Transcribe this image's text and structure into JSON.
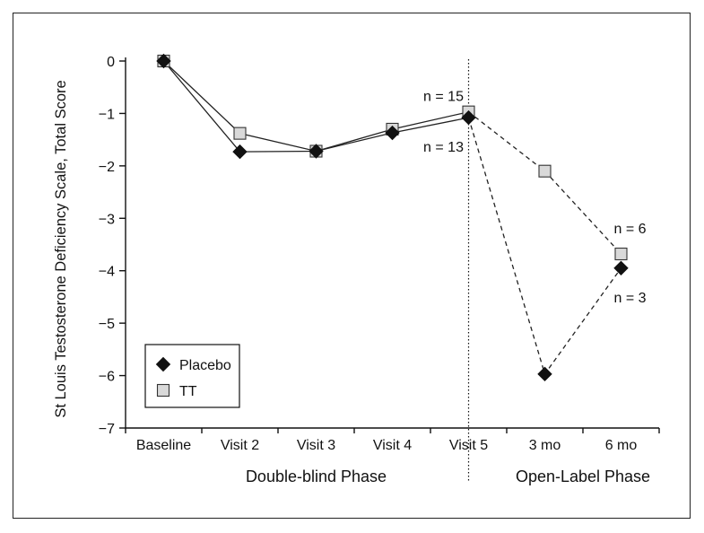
{
  "chart_data": {
    "type": "line",
    "ylabel": "St Louis Testosterone Deficiency Scale, Total Score",
    "xlabel": "",
    "ylim": [
      -7,
      0
    ],
    "yticks": [
      0,
      -1,
      -2,
      -3,
      -4,
      -5,
      -6,
      -7
    ],
    "ytick_labels": [
      "0",
      "−1",
      "−2",
      "−3",
      "−4",
      "−5",
      "−6",
      "−7"
    ],
    "categories": [
      "Baseline",
      "Visit 2",
      "Visit 3",
      "Visit 4",
      "Visit 5",
      "3 mo",
      "6 mo"
    ],
    "phases": [
      {
        "label": "Double-blind Phase",
        "categories": [
          "Baseline",
          "Visit 2",
          "Visit 3",
          "Visit 4",
          "Visit 5"
        ]
      },
      {
        "label": "Open-Label Phase",
        "categories": [
          "3 mo",
          "6 mo"
        ]
      }
    ],
    "phase_divider_after": "Visit 5",
    "series": [
      {
        "name": "Placebo",
        "marker": "diamond",
        "color": "#111111",
        "values": [
          0,
          -1.73,
          -1.72,
          -1.37,
          -1.08,
          -5.97,
          -3.95
        ]
      },
      {
        "name": "TT",
        "marker": "square",
        "color": "#d9d9d9",
        "values": [
          0,
          -1.38,
          -1.72,
          -1.3,
          -0.97,
          -2.1,
          -3.68
        ]
      }
    ],
    "annotations": [
      {
        "text": "n = 15",
        "series": "TT",
        "category": "Visit 5"
      },
      {
        "text": "n = 13",
        "series": "Placebo",
        "category": "Visit 5"
      },
      {
        "text": "n = 6",
        "series": "TT",
        "category": "6 mo"
      },
      {
        "text": "n = 3",
        "series": "Placebo",
        "category": "6 mo"
      }
    ],
    "legend_position": "bottom-left",
    "grid": false
  }
}
